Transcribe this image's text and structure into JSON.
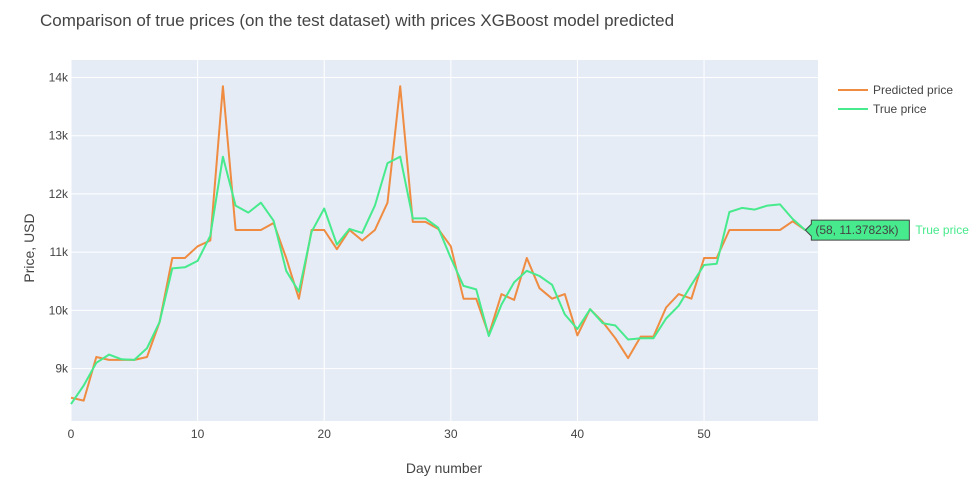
{
  "chart_data": {
    "type": "line",
    "title": "Comparison of true prices (on the test dataset) with prices XGBoost model predicted",
    "xlabel": "Day number",
    "ylabel": "Price, USD",
    "xlim": [
      0,
      59
    ],
    "ylim": [
      8100,
      14300
    ],
    "xticks": [
      0,
      10,
      20,
      30,
      40,
      50
    ],
    "xtick_labels": [
      "0",
      "10",
      "20",
      "30",
      "40",
      "50"
    ],
    "yticks": [
      9000,
      10000,
      11000,
      12000,
      13000,
      14000
    ],
    "ytick_labels": [
      "9k",
      "10k",
      "11k",
      "12k",
      "13k",
      "14k"
    ],
    "grid": true,
    "legend": "top-right",
    "x": [
      0,
      1,
      2,
      3,
      4,
      5,
      6,
      7,
      8,
      9,
      10,
      11,
      12,
      13,
      14,
      15,
      16,
      17,
      18,
      19,
      20,
      21,
      22,
      23,
      24,
      25,
      26,
      27,
      28,
      29,
      30,
      31,
      32,
      33,
      34,
      35,
      36,
      37,
      38,
      39,
      40,
      41,
      42,
      43,
      44,
      45,
      46,
      47,
      48,
      49,
      50,
      51,
      52,
      53,
      54,
      55,
      56,
      57,
      58
    ],
    "series": [
      {
        "name": "Predicted price",
        "color": "#ef8c41",
        "values": [
          8500,
          8450,
          9200,
          9150,
          9150,
          9150,
          9200,
          9800,
          10900,
          10900,
          11100,
          11200,
          13850,
          11380,
          11380,
          11380,
          11500,
          10900,
          10200,
          11380,
          11380,
          11050,
          11380,
          11200,
          11380,
          11850,
          13850,
          11520,
          11520,
          11400,
          11100,
          10200,
          10200,
          9580,
          10280,
          10180,
          10900,
          10380,
          10200,
          10280,
          9570,
          10020,
          9800,
          9520,
          9180,
          9550,
          9550,
          10050,
          10280,
          10200,
          10900,
          10900,
          11380,
          11380,
          11380,
          11380,
          11380,
          11530,
          11380
        ]
      },
      {
        "name": "True price",
        "color": "#47ea8c",
        "values": [
          8390,
          8710,
          9100,
          9240,
          9160,
          9150,
          9350,
          9800,
          10720,
          10740,
          10850,
          11280,
          12640,
          11800,
          11680,
          11850,
          11540,
          10680,
          10320,
          11350,
          11750,
          11130,
          11400,
          11330,
          11800,
          12530,
          12640,
          11580,
          11580,
          11420,
          10900,
          10420,
          10360,
          9560,
          10100,
          10480,
          10680,
          10590,
          10440,
          9930,
          9680,
          10020,
          9780,
          9740,
          9500,
          9520,
          9520,
          9860,
          10080,
          10440,
          10780,
          10800,
          11690,
          11760,
          11730,
          11800,
          11820,
          11570,
          11378
        ]
      }
    ],
    "hover": {
      "text": "(58, 11.37823k)",
      "series_label": "True price",
      "x": 58,
      "y": 11378.23
    }
  }
}
